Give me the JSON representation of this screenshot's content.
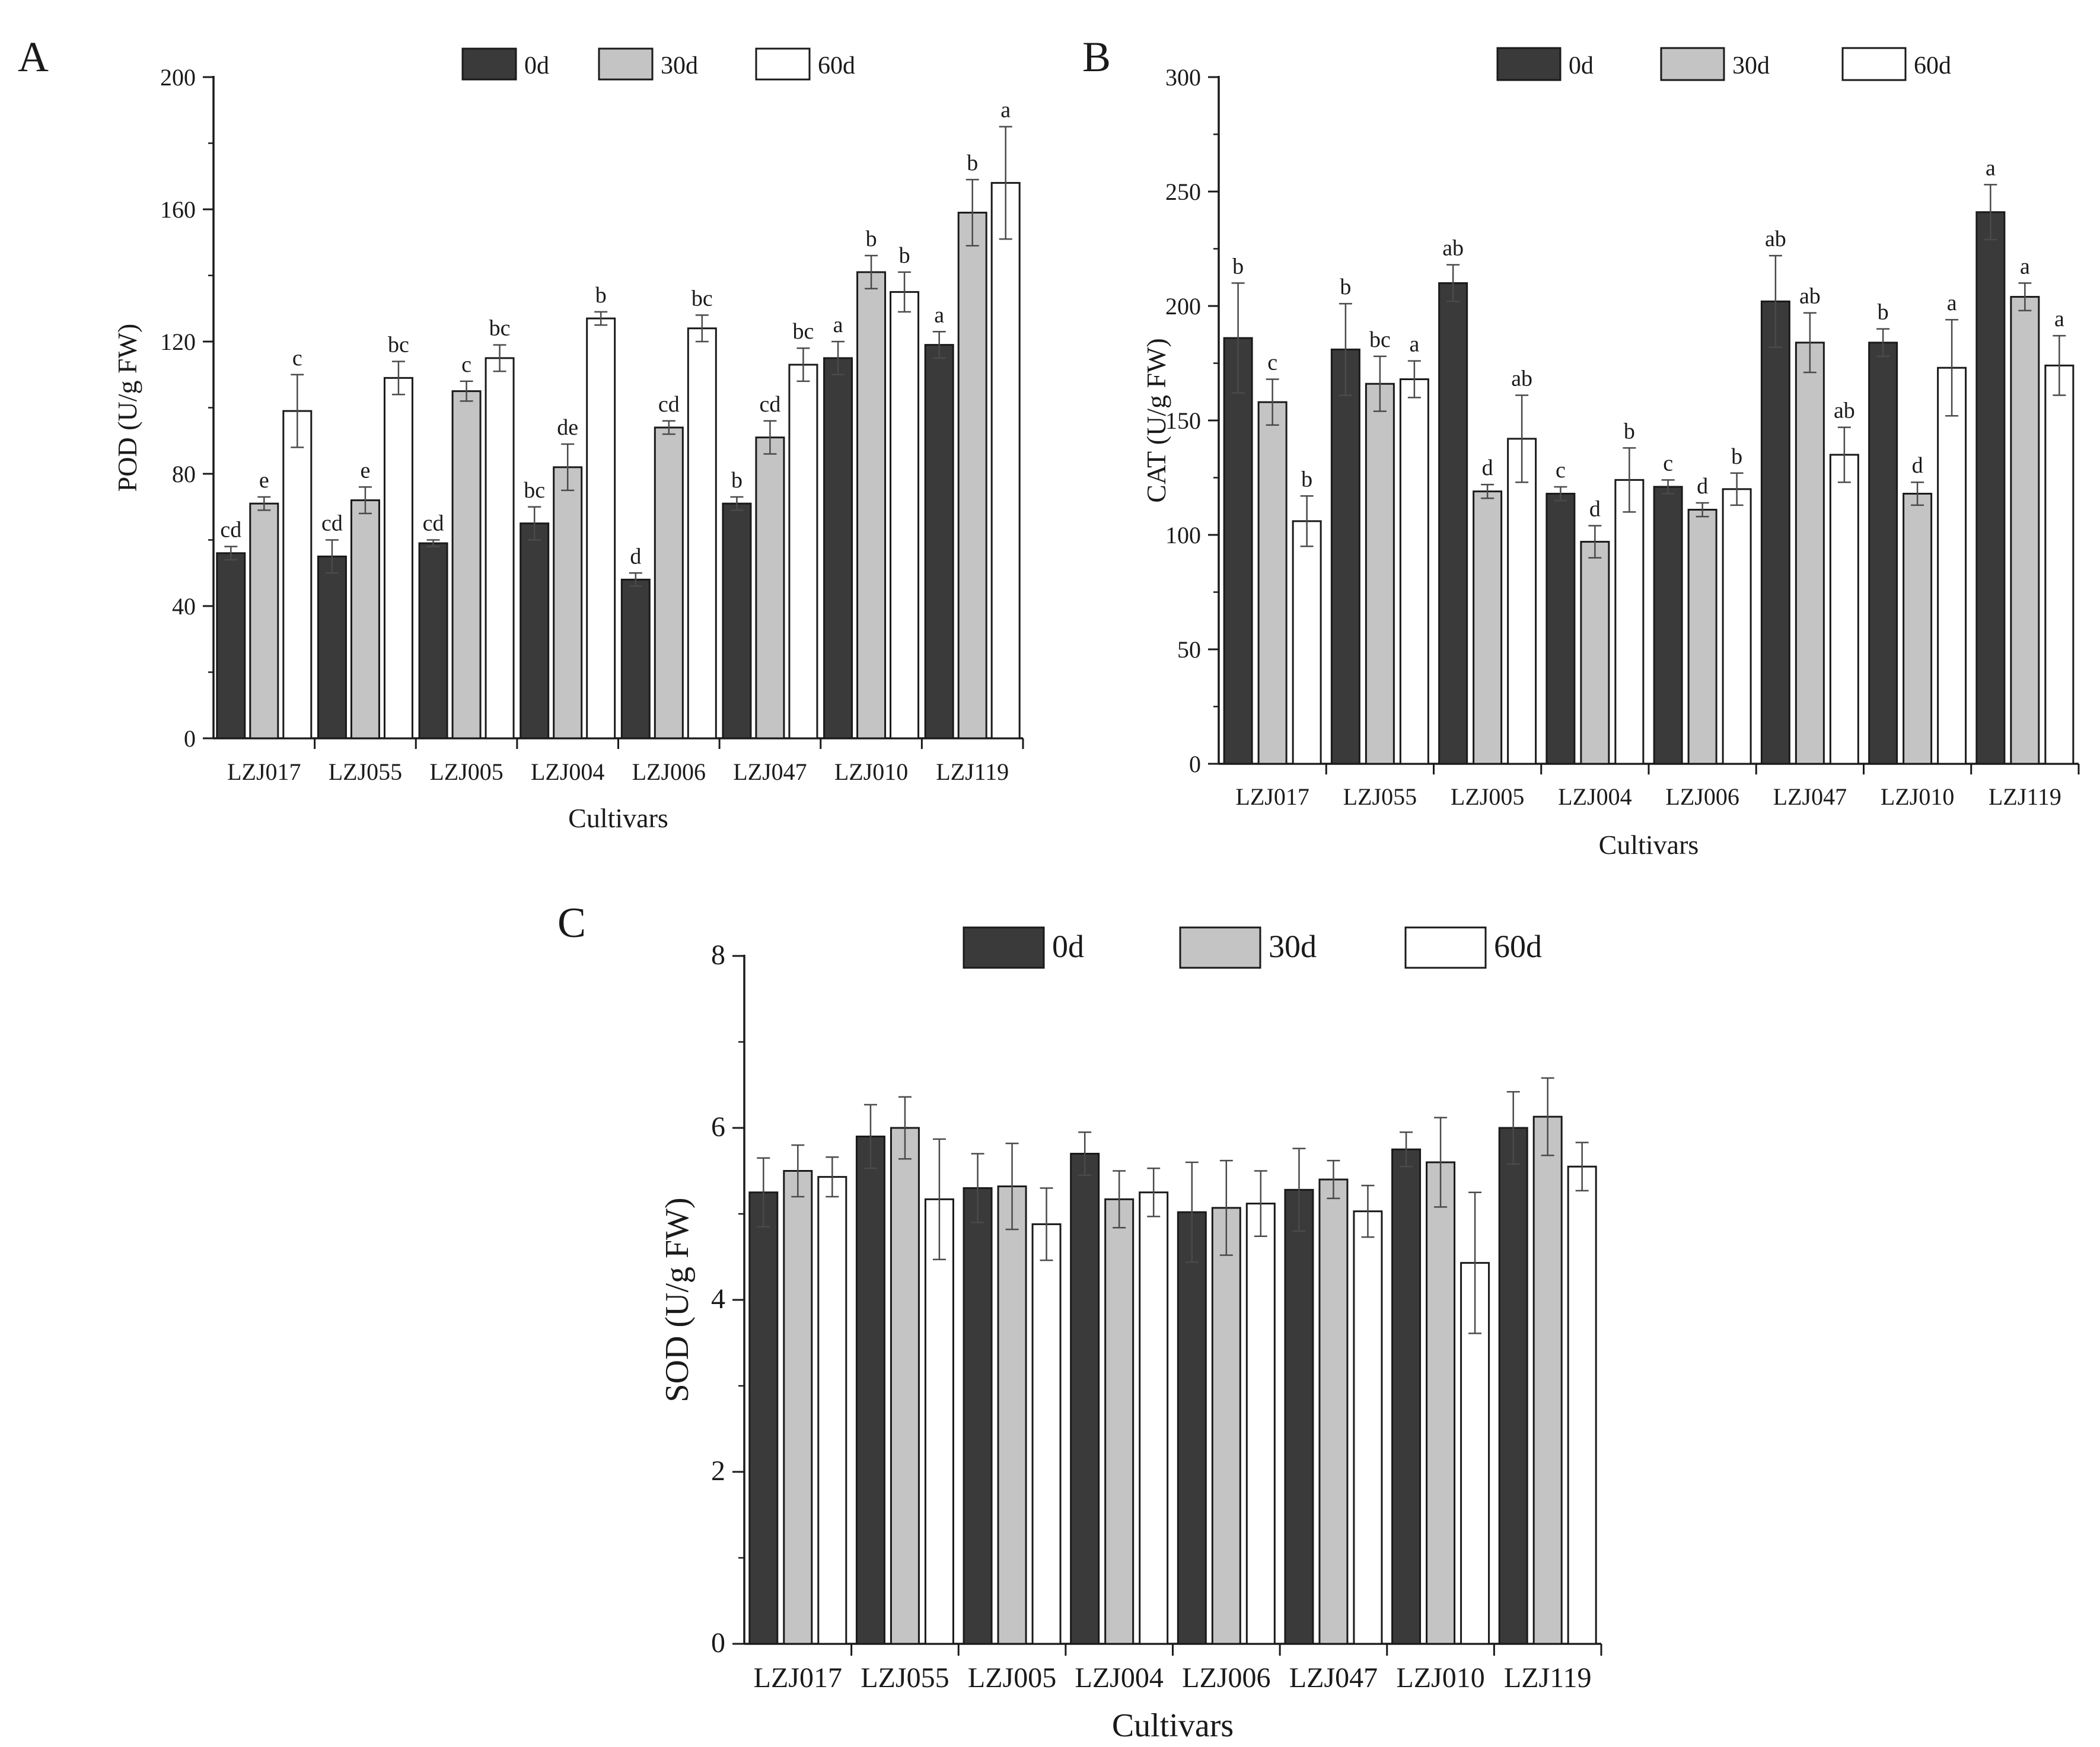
{
  "figure": {
    "panels": [
      "A",
      "B",
      "C"
    ]
  },
  "colors": {
    "series_0d": "#3a3a3a",
    "series_30d": "#c4c4c4",
    "series_60d": "#ffffff",
    "stroke": "#1a1a1a",
    "error_bar": "#4a4a4a"
  },
  "chart_data": [
    {
      "panel": "A",
      "type": "bar",
      "title": "",
      "xlabel": "Cultivars",
      "ylabel": "POD (U/g FW)",
      "ylim": [
        0,
        200
      ],
      "yticks": [
        0,
        40,
        80,
        120,
        160,
        200
      ],
      "categories": [
        "LZJ017",
        "LZJ055",
        "LZJ005",
        "LZJ004",
        "LZJ006",
        "LZJ047",
        "LZJ010",
        "LZJ119"
      ],
      "legend": [
        "0d",
        "30d",
        "60d"
      ],
      "series": [
        {
          "name": "0d",
          "values": [
            56,
            55,
            59,
            65,
            48,
            71,
            115,
            119
          ],
          "errors": [
            2,
            5,
            1,
            5,
            2,
            2,
            5,
            4
          ],
          "labels": [
            "cd",
            "cd",
            "cd",
            "bc",
            "d",
            "b",
            "a",
            "a"
          ]
        },
        {
          "name": "30d",
          "values": [
            71,
            72,
            105,
            82,
            94,
            91,
            141,
            159
          ],
          "errors": [
            2,
            4,
            3,
            7,
            2,
            5,
            5,
            10
          ],
          "labels": [
            "e",
            "e",
            "c",
            "de",
            "cd",
            "cd",
            "b",
            "b"
          ]
        },
        {
          "name": "60d",
          "values": [
            99,
            109,
            115,
            127,
            124,
            113,
            135,
            168
          ],
          "errors": [
            11,
            5,
            4,
            2,
            4,
            5,
            6,
            17
          ],
          "labels": [
            "c",
            "bc",
            "bc",
            "b",
            "bc",
            "bc",
            "b",
            "a"
          ]
        }
      ]
    },
    {
      "panel": "B",
      "type": "bar",
      "title": "",
      "xlabel": "Cultivars",
      "ylabel": "CAT (U/g FW)",
      "ylim": [
        0,
        300
      ],
      "yticks": [
        0,
        50,
        100,
        150,
        200,
        250,
        300
      ],
      "categories": [
        "LZJ017",
        "LZJ055",
        "LZJ005",
        "LZJ004",
        "LZJ006",
        "LZJ047",
        "LZJ010",
        "LZJ119"
      ],
      "legend": [
        "0d",
        "30d",
        "60d"
      ],
      "series": [
        {
          "name": "0d",
          "values": [
            186,
            181,
            210,
            118,
            121,
            202,
            184,
            241
          ],
          "errors": [
            24,
            20,
            8,
            3,
            3,
            20,
            6,
            12
          ],
          "labels": [
            "b",
            "b",
            "ab",
            "c",
            "c",
            "ab",
            "b",
            "a"
          ]
        },
        {
          "name": "30d",
          "values": [
            158,
            166,
            119,
            97,
            111,
            184,
            118,
            204
          ],
          "errors": [
            10,
            12,
            3,
            7,
            3,
            13,
            5,
            6
          ],
          "labels": [
            "c",
            "bc",
            "d",
            "d",
            "d",
            "ab",
            "d",
            "a"
          ]
        },
        {
          "name": "60d",
          "values": [
            106,
            168,
            142,
            124,
            120,
            135,
            173,
            174
          ],
          "errors": [
            11,
            8,
            19,
            14,
            7,
            12,
            21,
            13
          ],
          "labels": [
            "b",
            "a",
            "ab",
            "b",
            "b",
            "ab",
            "a",
            "a"
          ]
        }
      ]
    },
    {
      "panel": "C",
      "type": "bar",
      "title": "",
      "xlabel": "Cultivars",
      "ylabel": "SOD (U/g FW)",
      "ylim": [
        0,
        8
      ],
      "yticks": [
        0,
        2,
        4,
        6,
        8
      ],
      "categories": [
        "LZJ017",
        "LZJ055",
        "LZJ005",
        "LZJ004",
        "LZJ006",
        "LZJ047",
        "LZJ010",
        "LZJ119"
      ],
      "legend": [
        "0d",
        "30d",
        "60d"
      ],
      "series": [
        {
          "name": "0d",
          "values": [
            5.25,
            5.9,
            5.3,
            5.7,
            5.02,
            5.28,
            5.75,
            6.0
          ],
          "errors": [
            0.4,
            0.37,
            0.4,
            0.25,
            0.58,
            0.48,
            0.2,
            0.42
          ],
          "labels": [
            "",
            "",
            "",
            "",
            "",
            "",
            "",
            ""
          ]
        },
        {
          "name": "30d",
          "values": [
            5.5,
            6.0,
            5.32,
            5.17,
            5.07,
            5.4,
            5.6,
            6.13
          ],
          "errors": [
            0.3,
            0.36,
            0.5,
            0.33,
            0.55,
            0.22,
            0.52,
            0.45
          ],
          "labels": [
            "",
            "",
            "",
            "",
            "",
            "",
            "",
            ""
          ]
        },
        {
          "name": "60d",
          "values": [
            5.43,
            5.17,
            4.88,
            5.25,
            5.12,
            5.03,
            4.43,
            5.55
          ],
          "errors": [
            0.23,
            0.7,
            0.42,
            0.28,
            0.38,
            0.3,
            0.82,
            0.28
          ],
          "labels": [
            "",
            "",
            "",
            "",
            "",
            "",
            "",
            ""
          ]
        }
      ]
    }
  ]
}
